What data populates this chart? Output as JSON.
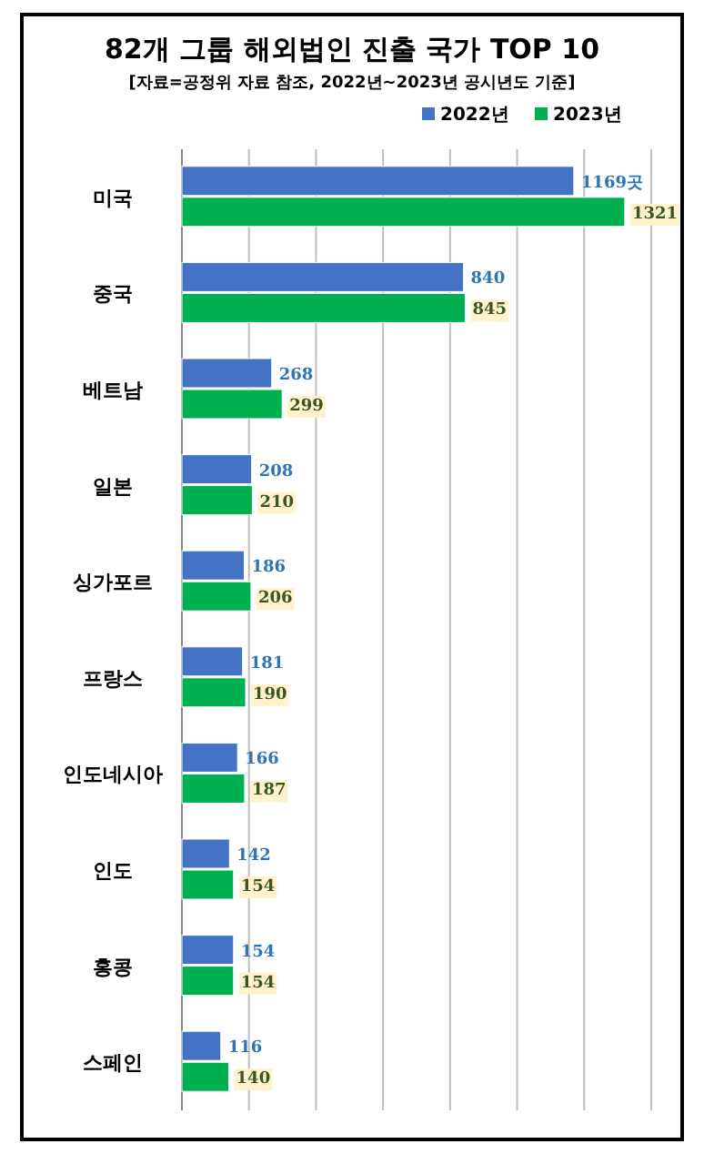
{
  "chart_data": {
    "type": "bar",
    "orientation": "horizontal",
    "title": "82개 그룹 해외법인 진출 국가 TOP 10",
    "subtitle": "[자료=공정위 자료 참조, 2022년~2023년 공시년도 기준]",
    "categories": [
      "미국",
      "중국",
      "베트남",
      "일본",
      "싱가포르",
      "프랑스",
      "인도네시아",
      "인도",
      "홍콩",
      "스페인"
    ],
    "series": [
      {
        "name": "2022년",
        "color": "#4472c4",
        "values": [
          1169,
          840,
          268,
          208,
          186,
          181,
          166,
          142,
          154,
          116
        ],
        "value_labels": [
          "1169곳",
          "840",
          "268",
          "208",
          "186",
          "181",
          "166",
          "142",
          "154",
          "116"
        ]
      },
      {
        "name": "2023년",
        "color": "#00b050",
        "values": [
          1321,
          845,
          299,
          210,
          206,
          190,
          187,
          154,
          154,
          140
        ],
        "value_labels": [
          "1321",
          "845",
          "299",
          "210",
          "206",
          "190",
          "187",
          "154",
          "154",
          "140"
        ]
      }
    ],
    "xlim": [
      0,
      1400
    ],
    "xticks": [
      {
        "value": 0,
        "label": null
      },
      {
        "value": 200,
        "label": null
      },
      {
        "value": 400,
        "label": null
      },
      {
        "value": 600,
        "label": null
      },
      {
        "value": 800,
        "label": null
      },
      {
        "value": 1000,
        "label": null
      },
      {
        "value": 1200,
        "label": null
      },
      {
        "value": 1400,
        "label": null
      }
    ],
    "grid": "x",
    "tick_labels": "y",
    "legend": "top right"
  }
}
